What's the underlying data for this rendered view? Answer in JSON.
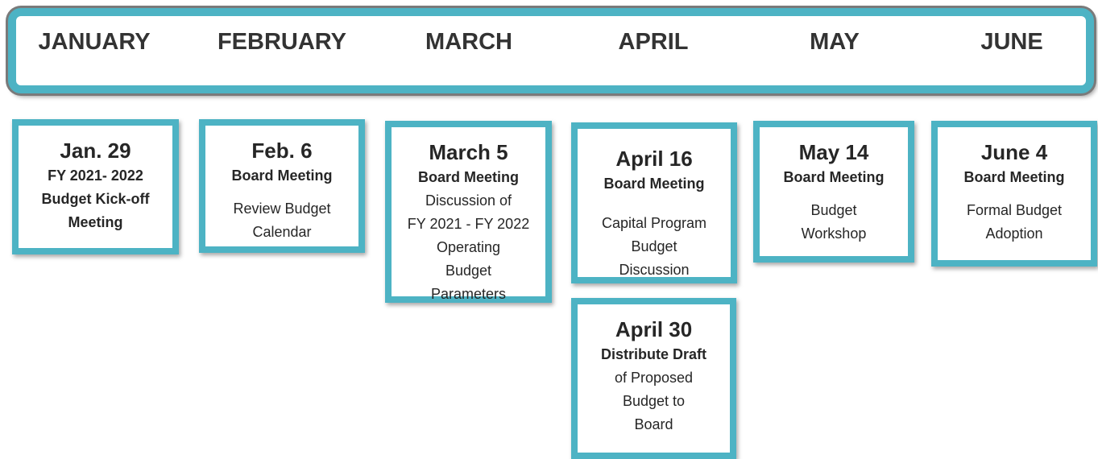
{
  "months": [
    "JANUARY",
    "FEBRUARY",
    "MARCH",
    "APRIL",
    "MAY",
    "JUNE"
  ],
  "events": [
    {
      "date": "Jan. 29",
      "heading": [
        "FY 2021- 2022",
        "Budget Kick-off",
        "Meeting"
      ],
      "body": []
    },
    {
      "date": "Feb. 6",
      "heading": [
        "Board Meeting"
      ],
      "body": [
        "Review Budget",
        "Calendar"
      ]
    },
    {
      "date": "March 5",
      "heading": [
        "Board Meeting"
      ],
      "body": [
        "Discussion of",
        "FY 2021 - FY 2022",
        "Operating",
        "Budget",
        "Parameters"
      ]
    },
    {
      "date": "April 16",
      "heading": [
        "Board Meeting"
      ],
      "body": [
        "Capital Program",
        "Budget",
        "Discussion"
      ]
    },
    {
      "date": "April 30",
      "heading": [
        "Distribute Draft"
      ],
      "body": [
        "of Proposed",
        "Budget to",
        "Board"
      ]
    },
    {
      "date": "May 14",
      "heading": [
        "Board Meeting"
      ],
      "body": [
        "Budget",
        "Workshop"
      ]
    },
    {
      "date": "June 4",
      "heading": [
        "Board Meeting"
      ],
      "body": [
        "Formal Budget",
        "Adoption"
      ]
    }
  ]
}
